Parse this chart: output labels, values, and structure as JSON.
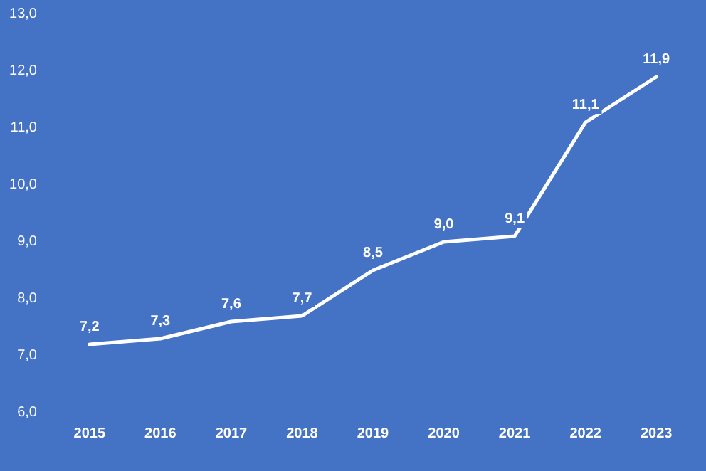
{
  "chart_data": {
    "type": "line",
    "categories": [
      "2015",
      "2016",
      "2017",
      "2018",
      "2019",
      "2020",
      "2021",
      "2022",
      "2023"
    ],
    "series": [
      {
        "color": "#ffffff",
        "values": [
          7.2,
          7.3,
          7.6,
          7.7,
          8.5,
          9.0,
          9.1,
          11.1,
          11.9
        ],
        "value_labels": [
          "7,2",
          "7,3",
          "7,6",
          "7,7",
          "8,5",
          "9,0",
          "9,1",
          "11,1",
          "11,9"
        ]
      }
    ],
    "ylim": [
      6,
      13
    ],
    "yticks": [
      {
        "value": 6,
        "label": "6,0"
      },
      {
        "value": 7,
        "label": "7,0"
      },
      {
        "value": 8,
        "label": "8,0"
      },
      {
        "value": 9,
        "label": "9,0"
      },
      {
        "value": 10,
        "label": "10,0"
      },
      {
        "value": 11,
        "label": "11,0"
      },
      {
        "value": 12,
        "label": "12,0"
      },
      {
        "value": 13,
        "label": "13,0"
      }
    ],
    "marker": "none",
    "line_style": "solid"
  }
}
